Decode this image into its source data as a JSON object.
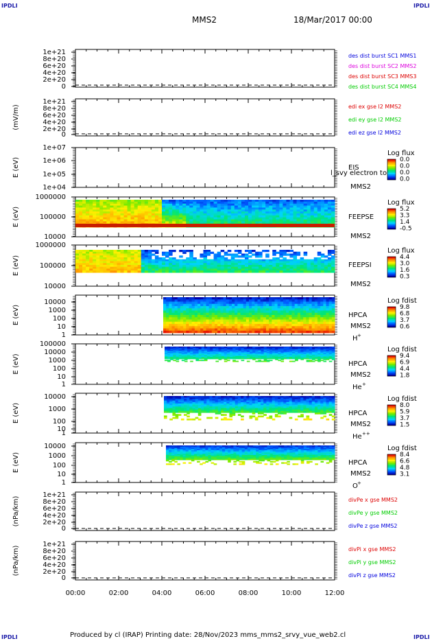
{
  "page": {
    "corner_label": "IPDLI",
    "title": "MMS2",
    "date": "18/Mar/2017 00:00",
    "footer": "Produced by cl (IRAP)   Printing date: 28/Nov/2023   mms_mms2_srvy_vue_web2.cl"
  },
  "colors": {
    "blue": "#0000dd",
    "magenta": "#dd00dd",
    "red": "#dd0000",
    "green": "#00cc00"
  },
  "chart_data": [
    {
      "type": "line",
      "id": "des",
      "y_ticks": [
        "1e+21",
        "8e+20",
        "6e+20",
        "4e+20",
        "2e+20",
        "0"
      ],
      "ylabel": "",
      "legend": [
        {
          "label": "des dist burst SC1 MMS1",
          "color": "#0000dd"
        },
        {
          "label": "des dist burst SC2 MMS2",
          "color": "#dd00dd"
        },
        {
          "label": "des dist burst SC3 MMS3",
          "color": "#dd0000"
        },
        {
          "label": "des dist burst SC4 MMS4",
          "color": "#00cc00"
        }
      ],
      "values": []
    },
    {
      "type": "line",
      "id": "edi",
      "y_ticks": [
        "1e+21",
        "8e+20",
        "6e+20",
        "4e+20",
        "2e+20",
        "0"
      ],
      "ylabel": "(mV/m)",
      "legend": [
        {
          "label": "edi ex gse l2 MMS2",
          "color": "#dd0000"
        },
        {
          "label": "edi ey gse l2 MMS2",
          "color": "#00cc00"
        },
        {
          "label": "edi ez gse l2 MMS2",
          "color": "#0000dd"
        }
      ],
      "values": []
    },
    {
      "type": "heatmap",
      "id": "eis",
      "y_ticks": [
        "1e+07",
        "1e+06",
        "1e+05",
        "1e+04"
      ],
      "ylabel": "E (eV)",
      "scale": "log",
      "instrument": "EIS",
      "spacecraft": "MMS2",
      "overlay_text": "l_svy electron to",
      "colorbar": {
        "title": "Log flux",
        "ticks": [
          "0.0",
          "0.0",
          "0.0",
          "0.0"
        ]
      },
      "coverage": "none"
    },
    {
      "type": "heatmap",
      "id": "feepse",
      "y_ticks": [
        "1000000",
        "100000",
        "10000"
      ],
      "ylabel": "E (eV)",
      "scale": "log",
      "instrument": "FEEPSE",
      "spacecraft": "MMS2",
      "colorbar": {
        "title": "Log flux",
        "ticks": [
          "5.2",
          "3.3",
          "1.4",
          "-0.5"
        ]
      },
      "coverage": "00:00-12:00"
    },
    {
      "type": "heatmap",
      "id": "feepsi",
      "y_ticks": [
        "1000000",
        "100000",
        "10000"
      ],
      "ylabel": "E (eV)",
      "scale": "log",
      "instrument": "FEEPSI",
      "spacecraft": "MMS2",
      "colorbar": {
        "title": "Log flux",
        "ticks": [
          "4.4",
          "3.0",
          "1.6",
          "0.3"
        ]
      },
      "coverage": "00:00-12:00"
    },
    {
      "type": "heatmap",
      "id": "hpca_h",
      "y_ticks": [
        "10000",
        "1000",
        "100",
        "10",
        "1"
      ],
      "ylabel": "E (eV)",
      "scale": "log",
      "instrument": "HPCA",
      "spacecraft": "MMS2",
      "species": "H",
      "species_sup": "+",
      "colorbar": {
        "title": "Log fdist",
        "ticks": [
          "9.8",
          "6.8",
          "3.7",
          "0.6"
        ]
      },
      "coverage": "04:05-12:00"
    },
    {
      "type": "heatmap",
      "id": "hpca_he",
      "y_ticks": [
        "100000",
        "10000",
        "1000",
        "100",
        "10",
        "1"
      ],
      "ylabel": "E (eV)",
      "scale": "log",
      "instrument": "HPCA",
      "spacecraft": "MMS2",
      "species": "He",
      "species_sup": "+",
      "colorbar": {
        "title": "Log fdist",
        "ticks": [
          "9.4",
          "6.9",
          "4.4",
          "1.8"
        ]
      },
      "coverage": "04:05-12:00"
    },
    {
      "type": "heatmap",
      "id": "hpca_hepp",
      "y_ticks": [
        "10000",
        "1000",
        "100",
        "10",
        "1"
      ],
      "ylabel": "E (eV)",
      "scale": "log",
      "instrument": "HPCA",
      "spacecraft": "MMS2",
      "species": "He",
      "species_sup": "++",
      "colorbar": {
        "title": "Log fdist",
        "ticks": [
          "8.0",
          "5.9",
          "3.7",
          "1.5"
        ]
      },
      "coverage": "04:05-12:00"
    },
    {
      "type": "heatmap",
      "id": "hpca_o",
      "y_ticks": [
        "10000",
        "1000",
        "100",
        "10",
        "1"
      ],
      "ylabel": "E (eV)",
      "scale": "log",
      "instrument": "HPCA",
      "spacecraft": "MMS2",
      "species": "O",
      "species_sup": "+",
      "colorbar": {
        "title": "Log fdist",
        "ticks": [
          "8.4",
          "6.6",
          "4.8",
          "3.1"
        ]
      },
      "coverage": "04:10-12:00"
    },
    {
      "type": "line",
      "id": "divpe",
      "y_ticks": [
        "1e+21",
        "8e+20",
        "6e+20",
        "4e+20",
        "2e+20",
        "0"
      ],
      "ylabel": "(nPa/km)",
      "legend": [
        {
          "label": "divPe x gse MMS2",
          "color": "#dd0000"
        },
        {
          "label": "divPe y gse MMS2",
          "color": "#00cc00"
        },
        {
          "label": "divPe z gse MMS2",
          "color": "#0000dd"
        }
      ],
      "values": []
    },
    {
      "type": "line",
      "id": "divpi",
      "y_ticks": [
        "1e+21",
        "8e+20",
        "6e+20",
        "4e+20",
        "2e+20",
        "0"
      ],
      "ylabel": "(nPa/km)",
      "legend": [
        {
          "label": "divPi x gse MMS2",
          "color": "#dd0000"
        },
        {
          "label": "divPi y gse MMS2",
          "color": "#00cc00"
        },
        {
          "label": "divPi z gse MMS2",
          "color": "#0000dd"
        }
      ],
      "values": []
    }
  ],
  "x_axis": {
    "ticks": [
      "00:00",
      "02:00",
      "04:00",
      "06:00",
      "08:00",
      "10:00",
      "12:00"
    ],
    "range": [
      "00:00",
      "12:00"
    ]
  }
}
